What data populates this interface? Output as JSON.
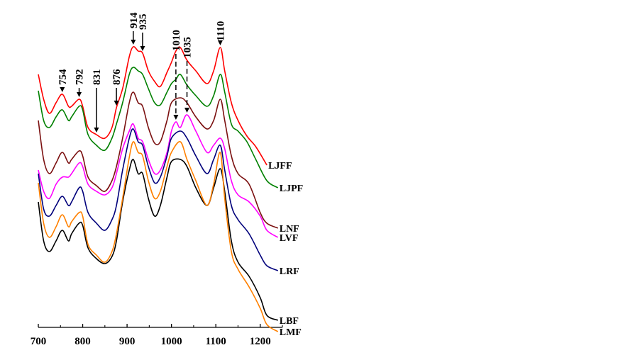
{
  "chart_data": {
    "type": "line",
    "title": "",
    "xlabel": "",
    "ylabel": "",
    "xlim": [
      700,
      1250
    ],
    "x_ticks": [
      "700",
      "800",
      "900",
      "1000",
      "1100",
      "1200"
    ],
    "x_tick_values": [
      700,
      800,
      900,
      1000,
      1100,
      1200
    ],
    "x_minor_tick_values": [
      750,
      850,
      950,
      1050,
      1150,
      1250
    ],
    "y_units": "absorbance (a.u., stacked offsets)",
    "ylim": [
      0,
      5
    ],
    "grid": false,
    "legend": "inline labels at right end of each curve",
    "series": [
      {
        "name": "LJFF",
        "color": "#ff0000",
        "points": [
          [
            700,
            3.95
          ],
          [
            712,
            3.6
          ],
          [
            725,
            3.4
          ],
          [
            740,
            3.55
          ],
          [
            754,
            3.67
          ],
          [
            768,
            3.5
          ],
          [
            775,
            3.5
          ],
          [
            792,
            3.6
          ],
          [
            800,
            3.5
          ],
          [
            812,
            3.2
          ],
          [
            831,
            3.1
          ],
          [
            850,
            3.05
          ],
          [
            866,
            3.2
          ],
          [
            876,
            3.48
          ],
          [
            890,
            3.75
          ],
          [
            905,
            4.2
          ],
          [
            914,
            4.34
          ],
          [
            925,
            4.28
          ],
          [
            935,
            4.25
          ],
          [
            948,
            4.0
          ],
          [
            962,
            3.85
          ],
          [
            975,
            3.78
          ],
          [
            990,
            3.98
          ],
          [
            1000,
            4.12
          ],
          [
            1010,
            4.28
          ],
          [
            1020,
            4.33
          ],
          [
            1035,
            4.15
          ],
          [
            1055,
            4.0
          ],
          [
            1080,
            3.82
          ],
          [
            1095,
            4.0
          ],
          [
            1110,
            4.33
          ],
          [
            1120,
            4.0
          ],
          [
            1135,
            3.55
          ],
          [
            1150,
            3.3
          ],
          [
            1170,
            3.08
          ],
          [
            1190,
            2.93
          ],
          [
            1215,
            2.67
          ]
        ]
      },
      {
        "name": "LJPF",
        "color": "#008000",
        "points": [
          [
            700,
            3.72
          ],
          [
            712,
            3.3
          ],
          [
            725,
            3.2
          ],
          [
            740,
            3.35
          ],
          [
            754,
            3.45
          ],
          [
            768,
            3.3
          ],
          [
            775,
            3.35
          ],
          [
            792,
            3.5
          ],
          [
            800,
            3.45
          ],
          [
            812,
            3.1
          ],
          [
            831,
            2.95
          ],
          [
            850,
            2.88
          ],
          [
            866,
            3.05
          ],
          [
            876,
            3.25
          ],
          [
            890,
            3.55
          ],
          [
            905,
            3.95
          ],
          [
            914,
            4.05
          ],
          [
            925,
            4.0
          ],
          [
            935,
            3.95
          ],
          [
            948,
            3.75
          ],
          [
            962,
            3.55
          ],
          [
            975,
            3.52
          ],
          [
            990,
            3.7
          ],
          [
            1000,
            3.82
          ],
          [
            1010,
            3.88
          ],
          [
            1020,
            3.95
          ],
          [
            1035,
            3.8
          ],
          [
            1055,
            3.65
          ],
          [
            1080,
            3.5
          ],
          [
            1095,
            3.65
          ],
          [
            1110,
            3.95
          ],
          [
            1120,
            3.7
          ],
          [
            1135,
            3.25
          ],
          [
            1150,
            3.15
          ],
          [
            1170,
            3.0
          ],
          [
            1190,
            2.75
          ],
          [
            1215,
            2.45
          ],
          [
            1240,
            2.35
          ]
        ]
      },
      {
        "name": "LNF",
        "color": "#7b1010",
        "points": [
          [
            700,
            3.3
          ],
          [
            712,
            2.75
          ],
          [
            725,
            2.55
          ],
          [
            740,
            2.7
          ],
          [
            754,
            2.85
          ],
          [
            768,
            2.7
          ],
          [
            775,
            2.75
          ],
          [
            792,
            2.87
          ],
          [
            800,
            2.8
          ],
          [
            812,
            2.5
          ],
          [
            831,
            2.38
          ],
          [
            850,
            2.3
          ],
          [
            866,
            2.45
          ],
          [
            876,
            2.65
          ],
          [
            890,
            3.05
          ],
          [
            905,
            3.55
          ],
          [
            914,
            3.7
          ],
          [
            925,
            3.55
          ],
          [
            935,
            3.5
          ],
          [
            948,
            3.2
          ],
          [
            962,
            2.98
          ],
          [
            975,
            3.0
          ],
          [
            990,
            3.3
          ],
          [
            1000,
            3.55
          ],
          [
            1020,
            3.62
          ],
          [
            1035,
            3.55
          ],
          [
            1055,
            3.35
          ],
          [
            1080,
            3.18
          ],
          [
            1095,
            3.3
          ],
          [
            1110,
            3.6
          ],
          [
            1120,
            3.3
          ],
          [
            1135,
            2.8
          ],
          [
            1150,
            2.55
          ],
          [
            1175,
            2.4
          ],
          [
            1200,
            2.0
          ],
          [
            1215,
            1.85
          ],
          [
            1240,
            1.78
          ]
        ]
      },
      {
        "name": "LVF",
        "color": "#ff00ff",
        "points": [
          [
            700,
            2.6
          ],
          [
            712,
            2.3
          ],
          [
            725,
            2.2
          ],
          [
            740,
            2.4
          ],
          [
            754,
            2.5
          ],
          [
            768,
            2.5
          ],
          [
            775,
            2.55
          ],
          [
            792,
            2.7
          ],
          [
            800,
            2.65
          ],
          [
            812,
            2.4
          ],
          [
            831,
            2.3
          ],
          [
            850,
            2.25
          ],
          [
            866,
            2.35
          ],
          [
            876,
            2.55
          ],
          [
            890,
            2.9
          ],
          [
            905,
            3.15
          ],
          [
            914,
            3.25
          ],
          [
            925,
            3.05
          ],
          [
            935,
            3.0
          ],
          [
            948,
            2.75
          ],
          [
            962,
            2.55
          ],
          [
            975,
            2.6
          ],
          [
            990,
            2.85
          ],
          [
            1000,
            3.15
          ],
          [
            1010,
            3.28
          ],
          [
            1020,
            3.2
          ],
          [
            1035,
            3.38
          ],
          [
            1055,
            3.15
          ],
          [
            1080,
            2.85
          ],
          [
            1095,
            2.95
          ],
          [
            1110,
            3.05
          ],
          [
            1120,
            2.9
          ],
          [
            1135,
            2.45
          ],
          [
            1150,
            2.25
          ],
          [
            1175,
            2.15
          ],
          [
            1200,
            1.95
          ],
          [
            1215,
            1.75
          ],
          [
            1240,
            1.65
          ]
        ]
      },
      {
        "name": "LRF",
        "color": "#00007b",
        "points": [
          [
            700,
            2.55
          ],
          [
            712,
            2.05
          ],
          [
            725,
            1.95
          ],
          [
            740,
            2.1
          ],
          [
            754,
            2.23
          ],
          [
            768,
            2.1
          ],
          [
            775,
            2.15
          ],
          [
            792,
            2.35
          ],
          [
            800,
            2.3
          ],
          [
            812,
            2.0
          ],
          [
            831,
            1.85
          ],
          [
            850,
            1.75
          ],
          [
            866,
            1.9
          ],
          [
            876,
            2.1
          ],
          [
            890,
            2.6
          ],
          [
            905,
            3.05
          ],
          [
            914,
            3.18
          ],
          [
            925,
            3.0
          ],
          [
            935,
            2.95
          ],
          [
            948,
            2.65
          ],
          [
            962,
            2.42
          ],
          [
            975,
            2.5
          ],
          [
            990,
            2.8
          ],
          [
            1000,
            3.05
          ],
          [
            1020,
            3.15
          ],
          [
            1035,
            3.05
          ],
          [
            1055,
            2.8
          ],
          [
            1080,
            2.55
          ],
          [
            1095,
            2.75
          ],
          [
            1110,
            2.95
          ],
          [
            1120,
            2.6
          ],
          [
            1135,
            2.1
          ],
          [
            1150,
            1.9
          ],
          [
            1175,
            1.7
          ],
          [
            1200,
            1.4
          ],
          [
            1215,
            1.25
          ],
          [
            1240,
            1.18
          ]
        ]
      },
      {
        "name": "LBF",
        "color": "#000000",
        "points": [
          [
            700,
            2.15
          ],
          [
            712,
            1.6
          ],
          [
            725,
            1.45
          ],
          [
            740,
            1.6
          ],
          [
            754,
            1.75
          ],
          [
            768,
            1.6
          ],
          [
            775,
            1.7
          ],
          [
            792,
            1.85
          ],
          [
            800,
            1.82
          ],
          [
            812,
            1.5
          ],
          [
            831,
            1.35
          ],
          [
            850,
            1.28
          ],
          [
            866,
            1.38
          ],
          [
            876,
            1.6
          ],
          [
            890,
            2.15
          ],
          [
            905,
            2.6
          ],
          [
            914,
            2.75
          ],
          [
            925,
            2.55
          ],
          [
            935,
            2.55
          ],
          [
            948,
            2.2
          ],
          [
            962,
            1.95
          ],
          [
            975,
            2.1
          ],
          [
            990,
            2.5
          ],
          [
            1000,
            2.72
          ],
          [
            1020,
            2.75
          ],
          [
            1035,
            2.65
          ],
          [
            1055,
            2.35
          ],
          [
            1080,
            2.1
          ],
          [
            1095,
            2.35
          ],
          [
            1110,
            2.62
          ],
          [
            1120,
            2.3
          ],
          [
            1135,
            1.6
          ],
          [
            1150,
            1.3
          ],
          [
            1175,
            1.1
          ],
          [
            1200,
            0.8
          ],
          [
            1215,
            0.55
          ],
          [
            1240,
            0.48
          ]
        ]
      },
      {
        "name": "LMF",
        "color": "#ff8000",
        "points": [
          [
            700,
            2.42
          ],
          [
            712,
            1.85
          ],
          [
            725,
            1.65
          ],
          [
            740,
            1.8
          ],
          [
            754,
            1.97
          ],
          [
            768,
            1.8
          ],
          [
            775,
            1.87
          ],
          [
            792,
            2.0
          ],
          [
            800,
            1.95
          ],
          [
            812,
            1.55
          ],
          [
            831,
            1.4
          ],
          [
            850,
            1.3
          ],
          [
            866,
            1.45
          ],
          [
            876,
            1.7
          ],
          [
            890,
            2.2
          ],
          [
            905,
            2.78
          ],
          [
            914,
            3.0
          ],
          [
            925,
            2.85
          ],
          [
            935,
            2.8
          ],
          [
            948,
            2.45
          ],
          [
            962,
            2.2
          ],
          [
            975,
            2.3
          ],
          [
            990,
            2.65
          ],
          [
            1000,
            2.85
          ],
          [
            1020,
            3.0
          ],
          [
            1035,
            2.75
          ],
          [
            1055,
            2.45
          ],
          [
            1080,
            2.1
          ],
          [
            1095,
            2.4
          ],
          [
            1110,
            2.85
          ],
          [
            1120,
            2.2
          ],
          [
            1135,
            1.45
          ],
          [
            1150,
            1.2
          ],
          [
            1175,
            0.95
          ],
          [
            1200,
            0.65
          ],
          [
            1215,
            0.42
          ],
          [
            1240,
            0.32
          ]
        ]
      }
    ],
    "annotations": [
      {
        "label": "754",
        "x": 754,
        "style": "solid",
        "target": "LJFF"
      },
      {
        "label": "792",
        "x": 792,
        "style": "solid",
        "target": "LJFF"
      },
      {
        "label": "831",
        "x": 831,
        "style": "solid",
        "target": "LJFF"
      },
      {
        "label": "876",
        "x": 876,
        "style": "solid",
        "target": "LJFF"
      },
      {
        "label": "914",
        "x": 914,
        "style": "solid",
        "target": "LJFF"
      },
      {
        "label": "935",
        "x": 935,
        "style": "solid",
        "target": "LJFF"
      },
      {
        "label": "1010",
        "x": 1010,
        "style": "dashed",
        "target": "LVF"
      },
      {
        "label": "1035",
        "x": 1035,
        "style": "dashed",
        "target": "LVF"
      },
      {
        "label": "1110",
        "x": 1110,
        "style": "solid",
        "target": "LJFF"
      }
    ]
  }
}
